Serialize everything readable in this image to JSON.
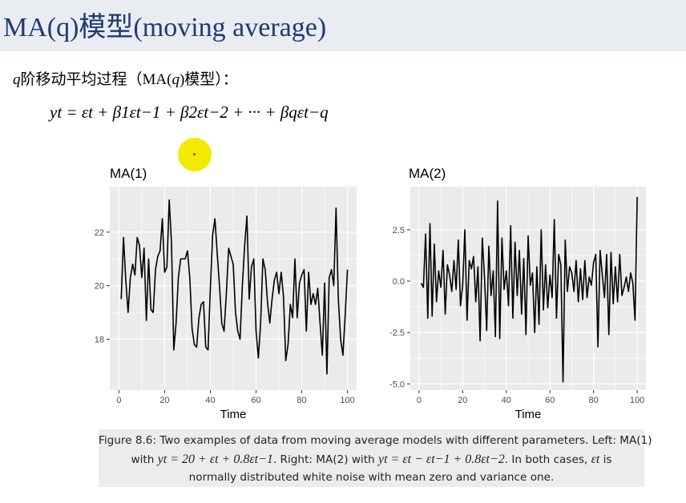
{
  "slide": {
    "title": "MA(q)模型(moving average)",
    "intro_var": "q",
    "intro_text": "阶移动平均过程（MA(",
    "intro_var2": "q",
    "intro_text2": ")模型）：",
    "equation": "yt = εt + β1εt−1 + β2εt−2 + ··· + βqεt−q"
  },
  "caption": {
    "line1": "Figure 8.6: Two examples of data from moving average models with different parameters. Left: MA(1)",
    "line2_a": "with",
    "line2_m1": "yt = 20 + εt + 0.8εt−1",
    "line2_b": ". Right: MA(2) with",
    "line2_m2": "yt = εt − εt−1 + 0.8εt−2",
    "line2_c": ". In both cases,",
    "line2_m3": "εt",
    "line2_d": "is",
    "line3": "normally distributed white noise with mean zero and variance one."
  },
  "colors": {
    "header_bg": "#e9ecf1",
    "title": "#1f3a74",
    "panel_bg": "#ebebeb",
    "grid": "#ffffff",
    "line": "#000000",
    "pointer": "#f2ea00"
  },
  "chart_data": [
    {
      "type": "line",
      "title": "MA(1)",
      "xlabel": "Time",
      "ylabel": "",
      "xlim": [
        -4,
        104
      ],
      "ylim": [
        16.1,
        23.7
      ],
      "xticks": [
        0,
        20,
        40,
        60,
        80,
        100
      ],
      "yticks": [
        18,
        20,
        22
      ],
      "grid": true,
      "series": [
        {
          "x": [
            1,
            2,
            3,
            4,
            5,
            6,
            7,
            8,
            9,
            10,
            11,
            12,
            13,
            14,
            15,
            16,
            17,
            18,
            19,
            20,
            21,
            22,
            23,
            24,
            25,
            26,
            27,
            28,
            29,
            30,
            31,
            32,
            33,
            34,
            35,
            36,
            37,
            38,
            39,
            40,
            41,
            42,
            43,
            44,
            45,
            46,
            47,
            48,
            49,
            50,
            51,
            52,
            53,
            54,
            55,
            56,
            57,
            58,
            59,
            60,
            61,
            62,
            63,
            64,
            65,
            66,
            67,
            68,
            69,
            70,
            71,
            72,
            73,
            74,
            75,
            76,
            77,
            78,
            79,
            80,
            81,
            82,
            83,
            84,
            85,
            86,
            87,
            88,
            89,
            90,
            91,
            92,
            93,
            94,
            95,
            96,
            97,
            98,
            99,
            100
          ],
          "values": [
            19.5,
            21.8,
            20.2,
            19.0,
            20.3,
            20.8,
            20.4,
            21.8,
            21.5,
            20.3,
            21.4,
            18.7,
            21.0,
            19.1,
            19.0,
            20.6,
            21.1,
            21.3,
            22.5,
            20.5,
            20.7,
            23.2,
            21.6,
            17.6,
            18.6,
            20.3,
            21.0,
            21.0,
            21.0,
            21.3,
            20.3,
            18.4,
            17.8,
            17.7,
            18.8,
            19.3,
            19.4,
            17.7,
            17.6,
            19.9,
            21.9,
            22.5,
            21.2,
            20.0,
            18.6,
            18.3,
            19.7,
            21.4,
            21.1,
            20.8,
            19.0,
            18.3,
            18.0,
            20.0,
            21.5,
            22.6,
            19.5,
            20.7,
            21.0,
            18.3,
            17.3,
            18.6,
            21.0,
            20.6,
            19.4,
            18.6,
            19.5,
            20.2,
            20.5,
            19.7,
            20.5,
            19.6,
            17.2,
            17.8,
            19.3,
            18.8,
            21.0,
            18.8,
            20.1,
            20.4,
            20.6,
            18.3,
            20.5,
            19.3,
            19.7,
            19.3,
            19.9,
            18.6,
            17.4,
            20.1,
            16.7,
            20.3,
            20.6,
            20.0,
            22.9,
            19.5,
            18.0,
            17.4,
            18.9,
            20.6
          ]
        }
      ]
    },
    {
      "type": "line",
      "title": "MA(2)",
      "xlabel": "Time",
      "ylabel": "",
      "xlim": [
        -4,
        104
      ],
      "ylim": [
        -5.3,
        4.6
      ],
      "xticks": [
        0,
        20,
        40,
        60,
        80,
        100
      ],
      "yticks": [
        -5.0,
        -2.5,
        0.0,
        2.5
      ],
      "grid": true,
      "series": [
        {
          "x": [
            1,
            2,
            3,
            4,
            5,
            6,
            7,
            8,
            9,
            10,
            11,
            12,
            13,
            14,
            15,
            16,
            17,
            18,
            19,
            20,
            21,
            22,
            23,
            24,
            25,
            26,
            27,
            28,
            29,
            30,
            31,
            32,
            33,
            34,
            35,
            36,
            37,
            38,
            39,
            40,
            41,
            42,
            43,
            44,
            45,
            46,
            47,
            48,
            49,
            50,
            51,
            52,
            53,
            54,
            55,
            56,
            57,
            58,
            59,
            60,
            61,
            62,
            63,
            64,
            65,
            66,
            67,
            68,
            69,
            70,
            71,
            72,
            73,
            74,
            75,
            76,
            77,
            78,
            79,
            80,
            81,
            82,
            83,
            84,
            85,
            86,
            87,
            88,
            89,
            90,
            91,
            92,
            93,
            94,
            95,
            96,
            97,
            98,
            99,
            100
          ],
          "values": [
            -0.1,
            -0.3,
            2.3,
            -1.8,
            2.8,
            -1.7,
            1.8,
            -1.0,
            0.5,
            -0.3,
            1.5,
            -1.6,
            0.8,
            0.3,
            -0.5,
            1.0,
            -0.4,
            2.0,
            -1.2,
            -0.2,
            2.5,
            -1.9,
            1.0,
            0.6,
            1.2,
            -1.0,
            0.7,
            -2.9,
            2.1,
            0.2,
            -2.4,
            1.7,
            -0.7,
            0.5,
            -2.7,
            3.9,
            -2.8,
            2.1,
            -0.4,
            0.5,
            -1.2,
            2.7,
            -1.8,
            1.9,
            -0.7,
            1.5,
            -1.6,
            1.1,
            -2.6,
            2.2,
            -0.2,
            0.4,
            -2.5,
            0.7,
            -2.1,
            2.5,
            -1.4,
            0.8,
            -1.3,
            0.3,
            -0.8,
            3.0,
            -1.8,
            1.3,
            0.8,
            -4.9,
            2.0,
            -0.5,
            0.7,
            0.4,
            -0.5,
            1.0,
            -1.0,
            0.6,
            -0.9,
            1.0,
            -0.8,
            0.2,
            -0.2,
            0.9,
            1.3,
            -3.2,
            1.5,
            0.3,
            -0.8,
            1.3,
            -2.6,
            1.4,
            -1.1,
            0.7,
            -1.0,
            1.3,
            -0.7,
            -0.3,
            0.2,
            -0.5,
            0.4,
            -0.1,
            -1.9,
            4.1
          ]
        }
      ]
    }
  ]
}
